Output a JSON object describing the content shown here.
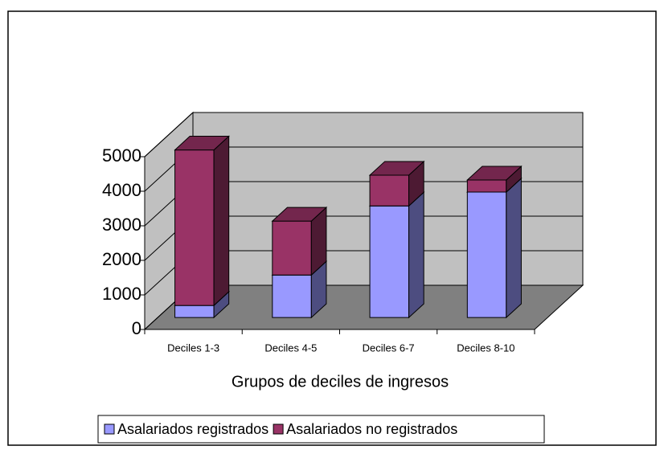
{
  "chart_data": {
    "type": "bar3d_stacked",
    "x_label": "Grupos de deciles de ingresos",
    "categories": [
      "Deciles 1-3",
      "Deciles 4-5",
      "Deciles 6-7",
      "Deciles 8-10"
    ],
    "series": [
      {
        "name": "Asalariados registrados",
        "color": "#9999ff",
        "values": [
          350,
          1230,
          3230,
          3630
        ]
      },
      {
        "name": "Asalariados no registrados",
        "color": "#993366",
        "values": [
          4500,
          1560,
          890,
          350
        ]
      }
    ],
    "ylim": [
      0,
      5000
    ],
    "yticks": [
      0,
      1000,
      2000,
      3000,
      4000,
      5000
    ],
    "grid": true
  }
}
